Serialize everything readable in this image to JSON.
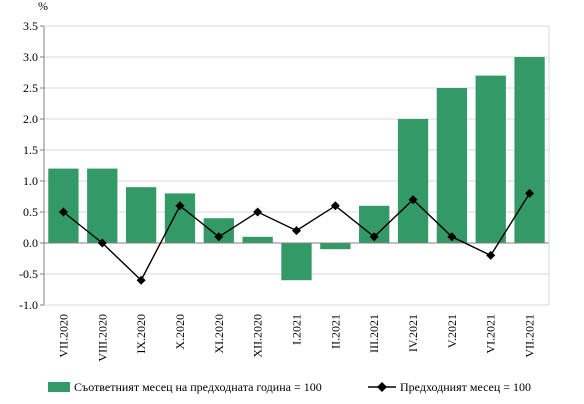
{
  "chart_data": {
    "type": "bar",
    "unit": "%",
    "categories": [
      "VII.2020",
      "VIII.2020",
      "IX.2020",
      "X.2020",
      "XI.2020",
      "XII.2020",
      "I.2021",
      "II.2021",
      "III.2021",
      "IV.2021",
      "V.2021",
      "VI.2021",
      "VII.2021"
    ],
    "series": [
      {
        "name": "Съответният месец на предходната година = 100",
        "type": "bar",
        "color": "#339966",
        "values": [
          1.2,
          1.2,
          0.9,
          0.8,
          0.4,
          0.1,
          -0.6,
          -0.1,
          0.6,
          2.0,
          2.5,
          2.7,
          3.0
        ]
      },
      {
        "name": "Предходният месец = 100",
        "type": "line",
        "color": "#000000",
        "marker": "diamond",
        "values": [
          0.5,
          0.0,
          -0.6,
          0.6,
          0.1,
          0.5,
          0.2,
          0.6,
          0.1,
          0.7,
          0.1,
          -0.2,
          0.8
        ]
      }
    ],
    "ylim": [
      -1.0,
      3.5
    ],
    "yticks": [
      "-1.0",
      "-0.5",
      "0.0",
      "0.5",
      "1.0",
      "1.5",
      "2.0",
      "2.5",
      "3.0",
      "3.5"
    ],
    "grid": true,
    "legend_position": "bottom"
  }
}
